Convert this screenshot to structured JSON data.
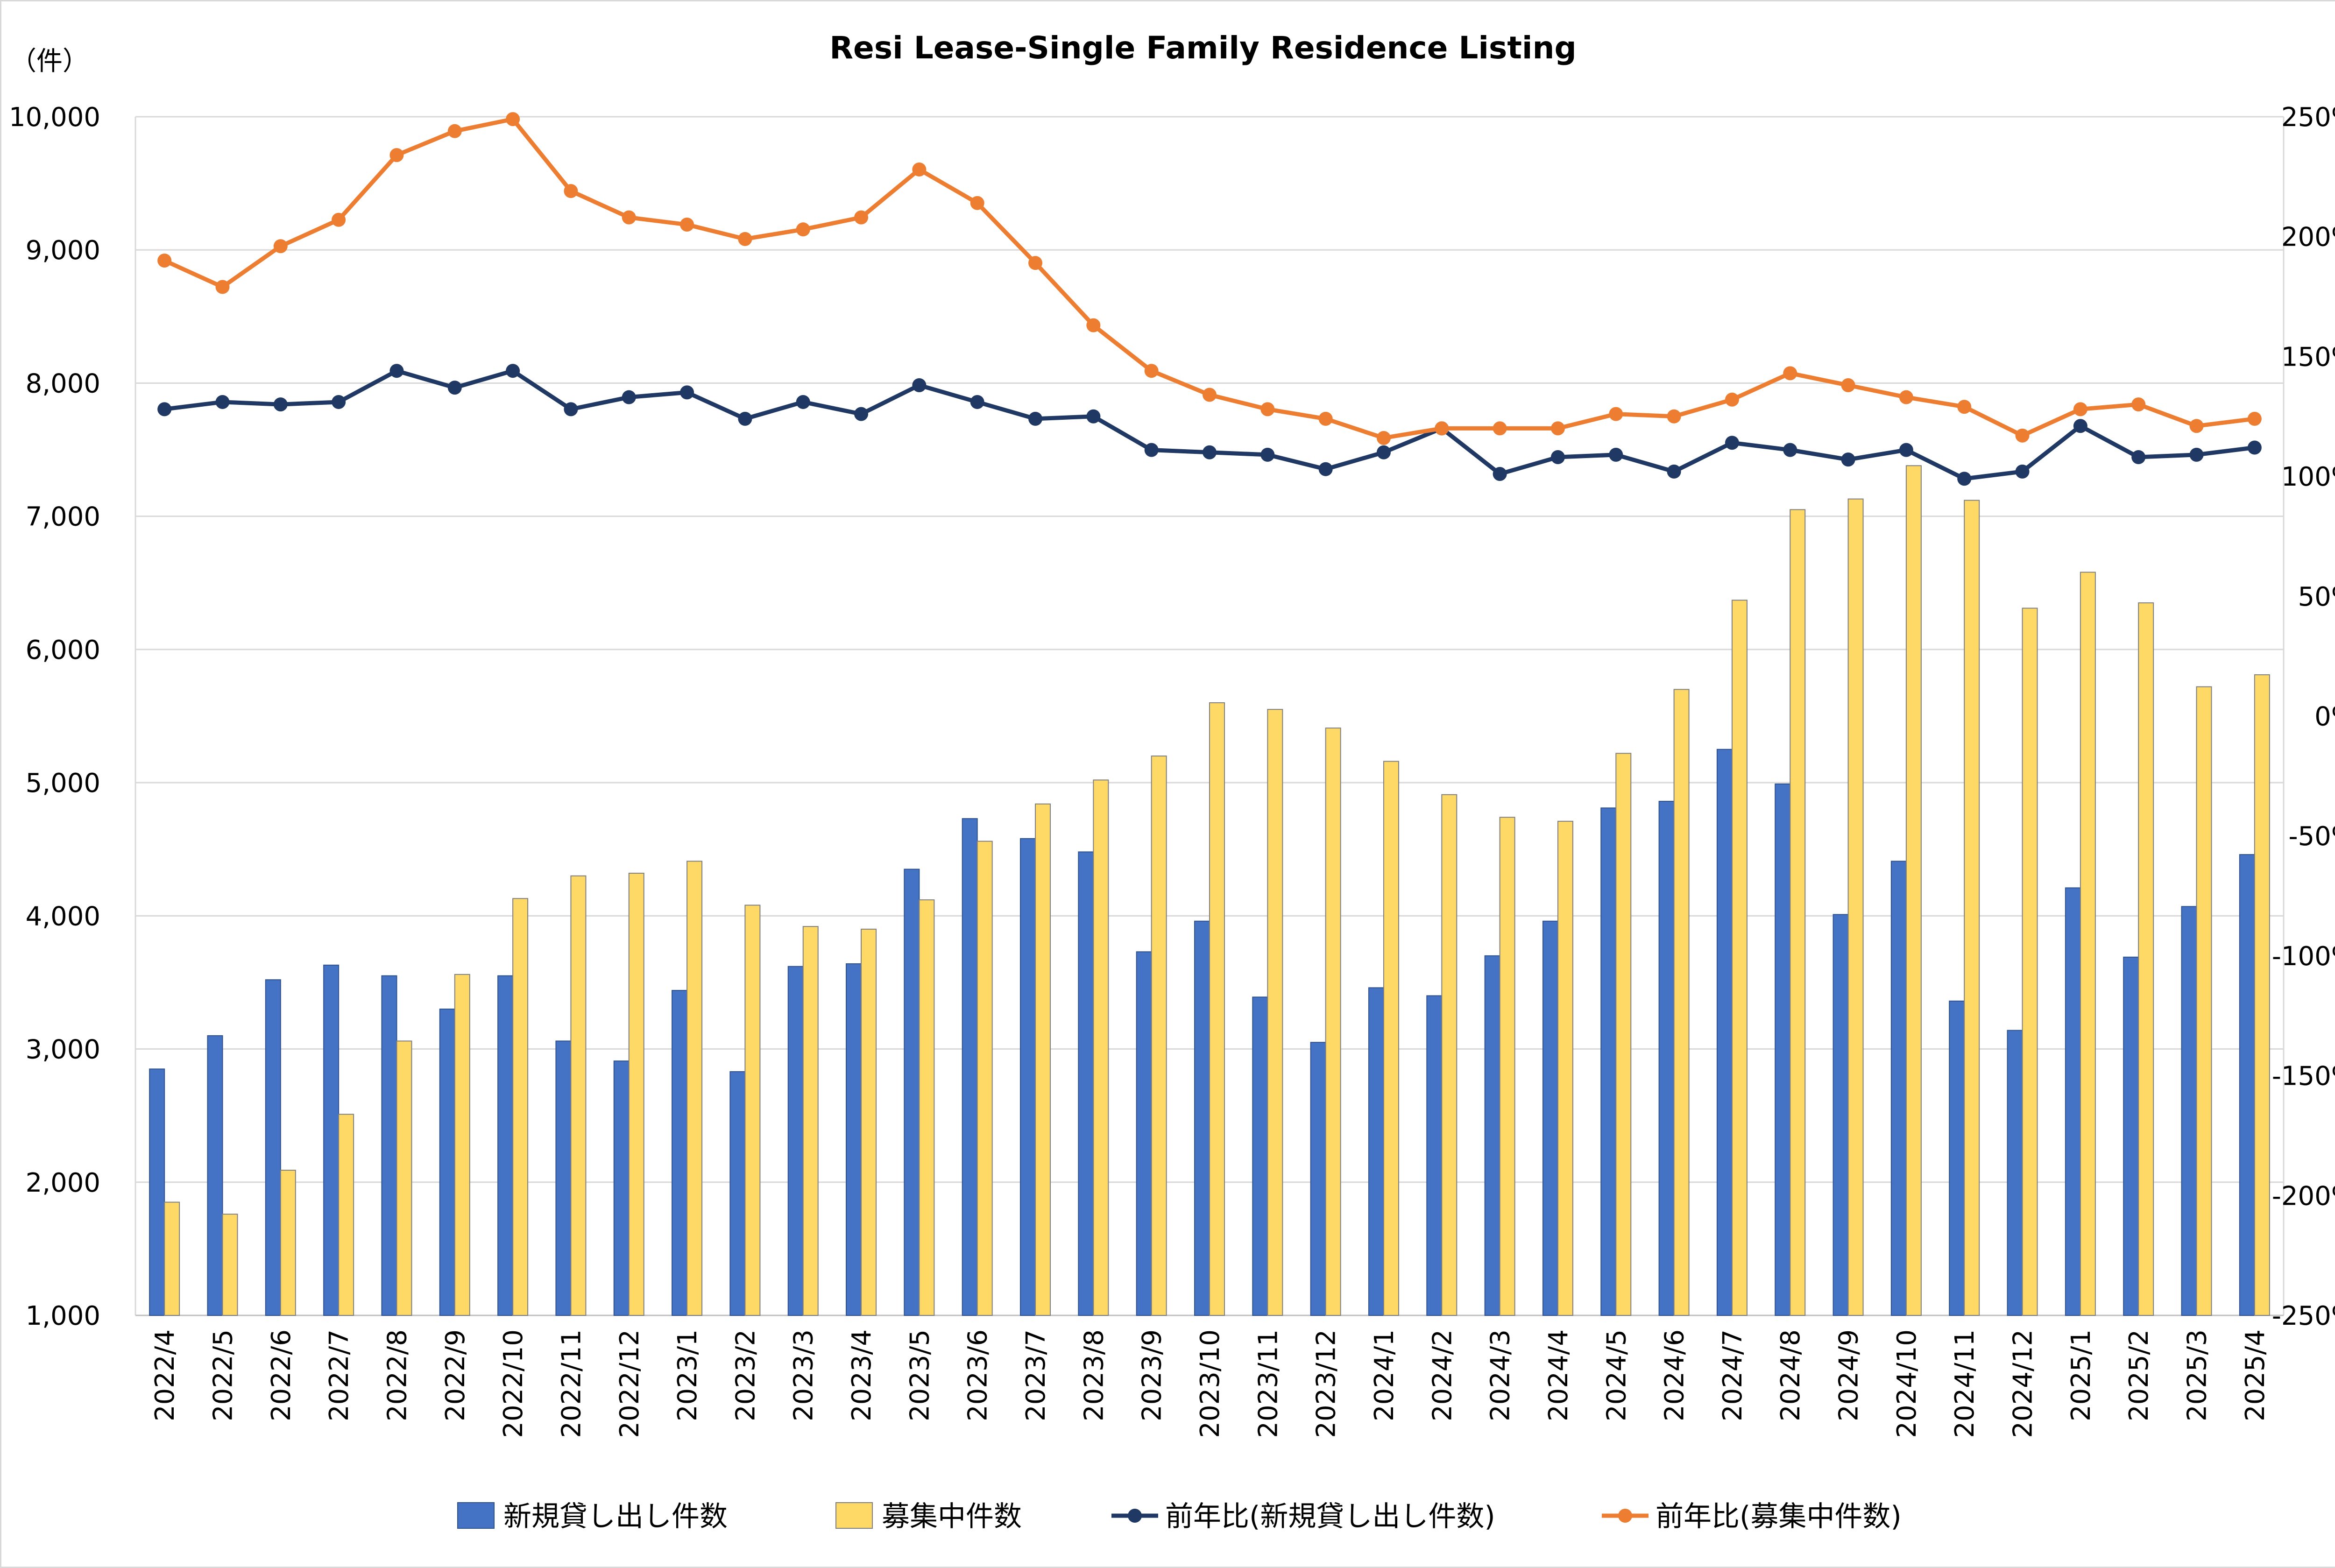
{
  "chart_data": {
    "type": "bar",
    "title": "Resi Lease-Single Family Residence Listing",
    "y_unit_label": "（件）",
    "categories": [
      "2022/4",
      "2022/5",
      "2022/6",
      "2022/7",
      "2022/8",
      "2022/9",
      "2022/10",
      "2022/11",
      "2022/12",
      "2023/1",
      "2023/2",
      "2023/3",
      "2023/4",
      "2023/5",
      "2023/6",
      "2023/7",
      "2023/8",
      "2023/9",
      "2023/10",
      "2023/11",
      "2023/12",
      "2024/1",
      "2024/2",
      "2024/3",
      "2024/4",
      "2024/5",
      "2024/6",
      "2024/7",
      "2024/8",
      "2024/9",
      "2024/10",
      "2024/11",
      "2024/12",
      "2025/1",
      "2025/2",
      "2025/3",
      "2025/4"
    ],
    "left_axis": {
      "ylim": [
        1000,
        10000
      ],
      "ticks": [
        1000,
        2000,
        3000,
        4000,
        5000,
        6000,
        7000,
        8000,
        9000,
        10000
      ],
      "tick_labels": [
        "1,000",
        "2,000",
        "3,000",
        "4,000",
        "5,000",
        "6,000",
        "7,000",
        "8,000",
        "9,000",
        "10,000"
      ]
    },
    "right_axis": {
      "ylim": [
        -250,
        250
      ],
      "ticks": [
        -250,
        -200,
        -150,
        -100,
        -50,
        0,
        50,
        100,
        150,
        200,
        250
      ],
      "tick_labels": [
        "-250%",
        "-200%",
        "-150%",
        "-100%",
        "-50%",
        "0%",
        "50%",
        "100%",
        "150%",
        "200%",
        "250%"
      ]
    },
    "grid": true,
    "legend_position": "bottom",
    "series": [
      {
        "name": "新規貸し出し件数",
        "type": "bar",
        "axis": "left",
        "color": "#4472c4",
        "values": [
          2850,
          3100,
          3520,
          3630,
          3550,
          3300,
          3550,
          3060,
          2910,
          3440,
          2830,
          3620,
          3640,
          4350,
          4730,
          4580,
          4480,
          3730,
          3960,
          3390,
          3050,
          3460,
          3400,
          3700,
          3960,
          4810,
          4860,
          5250,
          4990,
          4010,
          4410,
          3360,
          3140,
          4210,
          3690,
          4070,
          4460
        ]
      },
      {
        "name": "募集中件数",
        "type": "bar",
        "axis": "left",
        "color": "#ffd966",
        "values": [
          1850,
          1760,
          2090,
          2510,
          3060,
          3560,
          4130,
          4300,
          4320,
          4410,
          4080,
          3920,
          3900,
          4120,
          4560,
          4840,
          5020,
          5200,
          5600,
          5550,
          5410,
          5160,
          4910,
          4740,
          4710,
          5220,
          5700,
          6370,
          7050,
          7130,
          7380,
          7120,
          6310,
          6580,
          6350,
          5720,
          5810
        ]
      },
      {
        "name": "前年比(新規貸し出し件数)",
        "type": "line",
        "axis": "right",
        "color": "#1f3864",
        "values": [
          128,
          131,
          130,
          131,
          144,
          137,
          144,
          128,
          133,
          135,
          124,
          131,
          126,
          138,
          131,
          124,
          125,
          111,
          110,
          109,
          103,
          110,
          120,
          101,
          108,
          109,
          102,
          114,
          111,
          107,
          111,
          99,
          102,
          121,
          108,
          109,
          112
        ]
      },
      {
        "name": "前年比(募集中件数)",
        "type": "line",
        "axis": "right",
        "color": "#ed7d31",
        "values": [
          190,
          179,
          196,
          207,
          234,
          244,
          249,
          219,
          208,
          205,
          199,
          203,
          208,
          228,
          214,
          189,
          163,
          144,
          134,
          128,
          124,
          116,
          120,
          120,
          120,
          126,
          125,
          132,
          143,
          138,
          133,
          129,
          117,
          128,
          130,
          121,
          124
        ]
      }
    ]
  }
}
